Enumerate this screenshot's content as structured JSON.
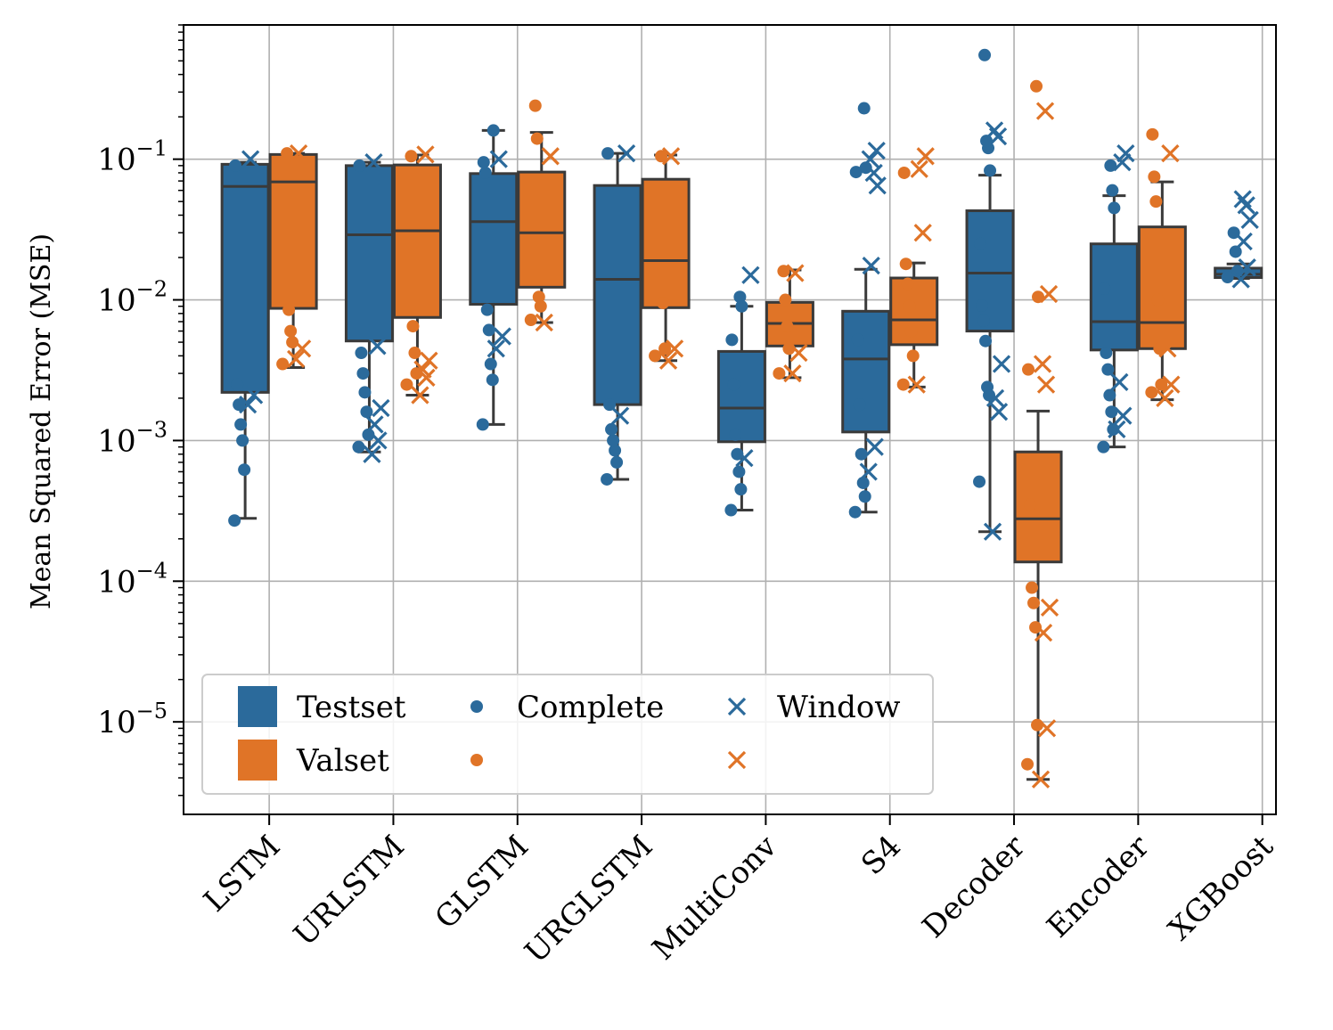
{
  "chart_data": {
    "type": "box",
    "ylabel": "Mean Squared Error (MSE)",
    "xlabel": "",
    "yscale": "log",
    "ylim": [
      2.2e-06,
      0.9
    ],
    "yticks": [
      {
        "value": 0.1,
        "mant": "10",
        "exp": "−1"
      },
      {
        "value": 0.01,
        "mant": "10",
        "exp": "−2"
      },
      {
        "value": 0.001,
        "mant": "10",
        "exp": "−3"
      },
      {
        "value": 0.0001,
        "mant": "10",
        "exp": "−4"
      },
      {
        "value": 1e-05,
        "mant": "10",
        "exp": "−5"
      }
    ],
    "grid": true,
    "legend_position": "lower-left",
    "colors": {
      "Testset": "#2b6a9b",
      "Valset": "#e07427",
      "box_edge": "#3a3a3a",
      "grid": "#b0b0b0"
    },
    "legend": {
      "items": [
        {
          "label": "Testset",
          "kind": "patch",
          "color": "#2b6a9b"
        },
        {
          "label": "Valset",
          "kind": "patch",
          "color": "#e07427"
        },
        {
          "label": "Complete",
          "kind": "dot",
          "color": "#2b6a9b"
        },
        {
          "label": "",
          "kind": "dot",
          "color": "#e07427"
        },
        {
          "label": "Window",
          "kind": "cross",
          "color": "#2b6a9b"
        },
        {
          "label": "",
          "kind": "cross",
          "color": "#e07427"
        }
      ]
    },
    "categories": [
      "LSTM",
      "URLSTM",
      "GLSTM",
      "URGLSTM",
      "MultiConv",
      "S4",
      "Decoder",
      "Encoder",
      "XGBoost"
    ],
    "series": [
      {
        "name": "Testset",
        "boxes": [
          {
            "whislo": 0.00028,
            "q1": 0.0022,
            "med": 0.064,
            "q3": 0.092,
            "whishi": 0.095
          },
          {
            "whislo": 0.00083,
            "q1": 0.0051,
            "med": 0.029,
            "q3": 0.09,
            "whishi": 0.095
          },
          {
            "whislo": 0.0013,
            "q1": 0.0093,
            "med": 0.036,
            "q3": 0.079,
            "whishi": 0.16
          },
          {
            "whislo": 0.00053,
            "q1": 0.0018,
            "med": 0.014,
            "q3": 0.065,
            "whishi": 0.11
          },
          {
            "whislo": 0.00032,
            "q1": 0.00098,
            "med": 0.0017,
            "q3": 0.0043,
            "whishi": 0.009
          },
          {
            "whislo": 0.00031,
            "q1": 0.00115,
            "med": 0.0038,
            "q3": 0.0083,
            "whishi": 0.0165
          },
          {
            "whislo": 0.000225,
            "q1": 0.006,
            "med": 0.0155,
            "q3": 0.043,
            "whishi": 0.077
          },
          {
            "whislo": 0.0009,
            "q1": 0.0044,
            "med": 0.007,
            "q3": 0.025,
            "whishi": 0.055
          },
          {
            "whislo": 0.0142,
            "q1": 0.0144,
            "med": 0.0152,
            "q3": 0.0168,
            "whishi": 0.018
          }
        ],
        "complete": [
          [
            0.00027,
            0.00062,
            0.001,
            0.0013,
            0.0018,
            0.0025,
            0.09
          ],
          [
            0.0009,
            0.0011,
            0.0016,
            0.0022,
            0.003,
            0.0042,
            0.09
          ],
          [
            0.0013,
            0.0027,
            0.0035,
            0.0061,
            0.0085,
            0.08,
            0.095,
            0.16
          ],
          [
            0.00053,
            0.0007,
            0.00085,
            0.001,
            0.0012,
            0.0018,
            0.11
          ],
          [
            0.00032,
            0.00045,
            0.0006,
            0.0008,
            0.0011,
            0.0025,
            0.0052,
            0.009,
            0.0105
          ],
          [
            0.00031,
            0.0004,
            0.0005,
            0.0008,
            0.0018,
            0.0052,
            0.081,
            0.087,
            0.23
          ],
          [
            0.00051,
            0.0021,
            0.0024,
            0.0051,
            0.0071,
            0.0091,
            0.025,
            0.083,
            0.12,
            0.135,
            0.55
          ],
          [
            0.0009,
            0.0012,
            0.0016,
            0.0021,
            0.0032,
            0.0042,
            0.012,
            0.045,
            0.06,
            0.09
          ],
          [
            0.0145,
            0.016,
            0.022,
            0.03
          ]
        ],
        "window": [
          [
            0.0018,
            0.0021,
            0.1
          ],
          [
            0.0008,
            0.001,
            0.0013,
            0.0017,
            0.0047,
            0.095
          ],
          [
            0.0045,
            0.0055,
            0.1
          ],
          [
            0.0015,
            0.11
          ],
          [
            0.00075,
            0.015
          ],
          [
            0.0006,
            0.0009,
            0.0175,
            0.065,
            0.08,
            0.1,
            0.115
          ],
          [
            0.000225,
            0.0016,
            0.002,
            0.0035,
            0.145,
            0.16
          ],
          [
            0.0012,
            0.0015,
            0.0026,
            0.11,
            0.095
          ],
          [
            0.014,
            0.017,
            0.026,
            0.037,
            0.047,
            0.052
          ]
        ]
      },
      {
        "name": "Valset",
        "boxes": [
          {
            "whislo": 0.0033,
            "q1": 0.0087,
            "med": 0.069,
            "q3": 0.108,
            "whishi": 0.11
          },
          {
            "whislo": 0.0021,
            "q1": 0.0075,
            "med": 0.031,
            "q3": 0.091,
            "whishi": 0.107
          },
          {
            "whislo": 0.0069,
            "q1": 0.0123,
            "med": 0.03,
            "q3": 0.081,
            "whishi": 0.155
          },
          {
            "whislo": 0.0037,
            "q1": 0.0088,
            "med": 0.019,
            "q3": 0.072,
            "whishi": 0.107
          },
          {
            "whislo": 0.0028,
            "q1": 0.0047,
            "med": 0.0068,
            "q3": 0.0096,
            "whishi": 0.0163
          },
          {
            "whislo": 0.0024,
            "q1": 0.0048,
            "med": 0.0072,
            "q3": 0.0143,
            "whishi": 0.0183
          },
          {
            "whislo": 3.9e-06,
            "q1": 0.000137,
            "med": 0.000278,
            "q3": 0.00083,
            "whishi": 0.00162
          },
          {
            "whislo": 0.00195,
            "q1": 0.0045,
            "med": 0.0069,
            "q3": 0.033,
            "whishi": 0.069
          },
          null
        ],
        "complete": [
          [
            0.0035,
            0.005,
            0.006,
            0.0085,
            0.11
          ],
          [
            0.0025,
            0.003,
            0.0042,
            0.0065,
            0.105
          ],
          [
            0.0072,
            0.009,
            0.0105,
            0.14,
            0.24
          ],
          [
            0.004,
            0.0045,
            0.0095,
            0.105
          ],
          [
            0.003,
            0.0045,
            0.0065,
            0.01,
            0.016
          ],
          [
            0.0025,
            0.004,
            0.006,
            0.009,
            0.013,
            0.018,
            0.08
          ],
          [
            5e-06,
            9.5e-06,
            4.7e-05,
            7e-05,
            9e-05,
            0.00035,
            0.0032,
            0.0105,
            0.33
          ],
          [
            0.0022,
            0.0025,
            0.0045,
            0.01,
            0.05,
            0.075,
            0.15
          ],
          []
        ],
        "window": [
          [
            0.0038,
            0.0045,
            0.11
          ],
          [
            0.0021,
            0.0028,
            0.0032,
            0.0037,
            0.108
          ],
          [
            0.0069,
            0.105
          ],
          [
            0.0037,
            0.0045,
            0.105
          ],
          [
            0.003,
            0.0042,
            0.0155
          ],
          [
            0.0025,
            0.03,
            0.085,
            0.105
          ],
          [
            3.9e-06,
            9e-06,
            4.3e-05,
            6.5e-05,
            0.0025,
            0.0035,
            0.011,
            0.22
          ],
          [
            0.002,
            0.0025,
            0.0045,
            0.011,
            0.11
          ],
          []
        ]
      }
    ]
  }
}
